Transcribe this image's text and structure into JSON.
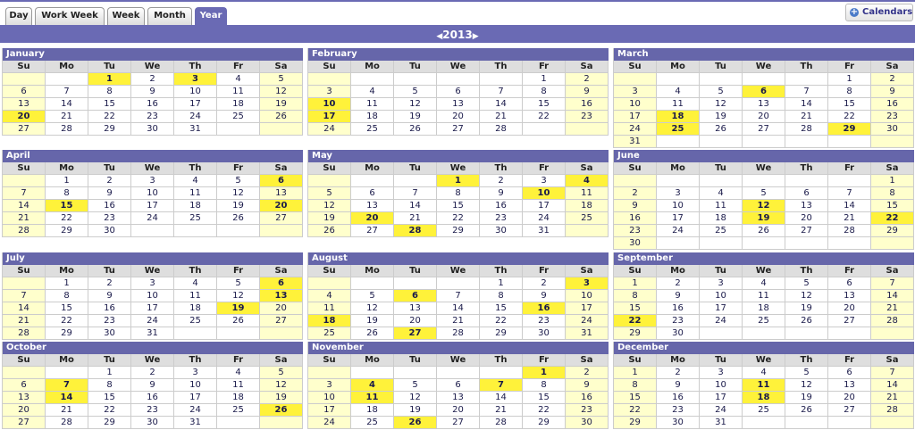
{
  "tabs": [
    {
      "label": "Day",
      "active": false
    },
    {
      "label": "Work Week",
      "active": false
    },
    {
      "label": "Week",
      "active": false
    },
    {
      "label": "Month",
      "active": false
    },
    {
      "label": "Year",
      "active": true
    }
  ],
  "calendars_button": "Calendars",
  "year": "2013",
  "weekdays": [
    "Su",
    "Mo",
    "Tu",
    "We",
    "Th",
    "Fr",
    "Sa"
  ],
  "months": [
    {
      "name": "January",
      "weeks": [
        [
          null,
          null,
          1,
          2,
          3,
          4,
          5
        ],
        [
          6,
          7,
          8,
          9,
          10,
          11,
          12
        ],
        [
          13,
          14,
          15,
          16,
          17,
          18,
          19
        ],
        [
          20,
          21,
          22,
          23,
          24,
          25,
          26
        ],
        [
          27,
          28,
          29,
          30,
          31,
          null,
          null
        ]
      ],
      "events": [
        1,
        3,
        20
      ]
    },
    {
      "name": "February",
      "weeks": [
        [
          null,
          null,
          null,
          null,
          null,
          1,
          2
        ],
        [
          3,
          4,
          5,
          6,
          7,
          8,
          9
        ],
        [
          10,
          11,
          12,
          13,
          14,
          15,
          16
        ],
        [
          17,
          18,
          19,
          20,
          21,
          22,
          23
        ],
        [
          24,
          25,
          26,
          27,
          28,
          null,
          null
        ]
      ],
      "events": [
        10,
        17
      ]
    },
    {
      "name": "March",
      "weeks": [
        [
          null,
          null,
          null,
          null,
          null,
          1,
          2
        ],
        [
          3,
          4,
          5,
          6,
          7,
          8,
          9
        ],
        [
          10,
          11,
          12,
          13,
          14,
          15,
          16
        ],
        [
          17,
          18,
          19,
          20,
          21,
          22,
          23
        ],
        [
          24,
          25,
          26,
          27,
          28,
          29,
          30
        ],
        [
          31,
          null,
          null,
          null,
          null,
          null,
          null
        ]
      ],
      "events": [
        6,
        18,
        25,
        29
      ]
    },
    {
      "name": "April",
      "weeks": [
        [
          null,
          1,
          2,
          3,
          4,
          5,
          6
        ],
        [
          7,
          8,
          9,
          10,
          11,
          12,
          13
        ],
        [
          14,
          15,
          16,
          17,
          18,
          19,
          20
        ],
        [
          21,
          22,
          23,
          24,
          25,
          26,
          27
        ],
        [
          28,
          29,
          30,
          null,
          null,
          null,
          null
        ]
      ],
      "events": [
        6,
        15,
        20
      ]
    },
    {
      "name": "May",
      "weeks": [
        [
          null,
          null,
          null,
          1,
          2,
          3,
          4
        ],
        [
          5,
          6,
          7,
          8,
          9,
          10,
          11
        ],
        [
          12,
          13,
          14,
          15,
          16,
          17,
          18
        ],
        [
          19,
          20,
          21,
          22,
          23,
          24,
          25
        ],
        [
          26,
          27,
          28,
          29,
          30,
          31,
          null
        ]
      ],
      "events": [
        1,
        4,
        10,
        20,
        28
      ]
    },
    {
      "name": "June",
      "weeks": [
        [
          null,
          null,
          null,
          null,
          null,
          null,
          1
        ],
        [
          2,
          3,
          4,
          5,
          6,
          7,
          8
        ],
        [
          9,
          10,
          11,
          12,
          13,
          14,
          15
        ],
        [
          16,
          17,
          18,
          19,
          20,
          21,
          22
        ],
        [
          23,
          24,
          25,
          26,
          27,
          28,
          29
        ],
        [
          30,
          null,
          null,
          null,
          null,
          null,
          null
        ]
      ],
      "events": [
        12,
        19,
        22
      ]
    },
    {
      "name": "July",
      "weeks": [
        [
          null,
          1,
          2,
          3,
          4,
          5,
          6
        ],
        [
          7,
          8,
          9,
          10,
          11,
          12,
          13
        ],
        [
          14,
          15,
          16,
          17,
          18,
          19,
          20
        ],
        [
          21,
          22,
          23,
          24,
          25,
          26,
          27
        ],
        [
          28,
          29,
          30,
          31,
          null,
          null,
          null
        ]
      ],
      "events": [
        6,
        13,
        19
      ]
    },
    {
      "name": "August",
      "weeks": [
        [
          null,
          null,
          null,
          null,
          1,
          2,
          3
        ],
        [
          4,
          5,
          6,
          7,
          8,
          9,
          10
        ],
        [
          11,
          12,
          13,
          14,
          15,
          16,
          17
        ],
        [
          18,
          19,
          20,
          21,
          22,
          23,
          24
        ],
        [
          25,
          26,
          27,
          28,
          29,
          30,
          31
        ]
      ],
      "events": [
        3,
        6,
        16,
        18,
        27
      ]
    },
    {
      "name": "September",
      "weeks": [
        [
          1,
          2,
          3,
          4,
          5,
          6,
          7
        ],
        [
          8,
          9,
          10,
          11,
          12,
          13,
          14
        ],
        [
          15,
          16,
          17,
          18,
          19,
          20,
          21
        ],
        [
          22,
          23,
          24,
          25,
          26,
          27,
          28
        ],
        [
          29,
          30,
          null,
          null,
          null,
          null,
          null
        ]
      ],
      "events": [
        22
      ]
    },
    {
      "name": "October",
      "weeks": [
        [
          null,
          null,
          1,
          2,
          3,
          4,
          5
        ],
        [
          6,
          7,
          8,
          9,
          10,
          11,
          12
        ],
        [
          13,
          14,
          15,
          16,
          17,
          18,
          19
        ],
        [
          20,
          21,
          22,
          23,
          24,
          25,
          26
        ],
        [
          27,
          28,
          29,
          30,
          31,
          null,
          null
        ]
      ],
      "events": [
        7,
        14,
        26
      ]
    },
    {
      "name": "November",
      "weeks": [
        [
          null,
          null,
          null,
          null,
          null,
          1,
          2
        ],
        [
          3,
          4,
          5,
          6,
          7,
          8,
          9
        ],
        [
          10,
          11,
          12,
          13,
          14,
          15,
          16
        ],
        [
          17,
          18,
          19,
          20,
          21,
          22,
          23
        ],
        [
          24,
          25,
          26,
          27,
          28,
          29,
          30
        ]
      ],
      "events": [
        1,
        4,
        7,
        11,
        26
      ]
    },
    {
      "name": "December",
      "weeks": [
        [
          1,
          2,
          3,
          4,
          5,
          6,
          7
        ],
        [
          8,
          9,
          10,
          11,
          12,
          13,
          14
        ],
        [
          15,
          16,
          17,
          18,
          19,
          20,
          21
        ],
        [
          22,
          23,
          24,
          25,
          26,
          27,
          28
        ],
        [
          29,
          30,
          31,
          null,
          null,
          null,
          null
        ]
      ],
      "events": [
        11,
        18
      ]
    }
  ]
}
